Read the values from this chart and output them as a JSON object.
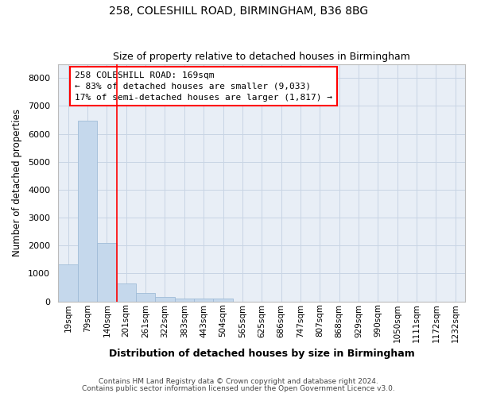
{
  "title1": "258, COLESHILL ROAD, BIRMINGHAM, B36 8BG",
  "title2": "Size of property relative to detached houses in Birmingham",
  "xlabel": "Distribution of detached houses by size in Birmingham",
  "ylabel": "Number of detached properties",
  "bar_labels": [
    "19sqm",
    "79sqm",
    "140sqm",
    "201sqm",
    "261sqm",
    "322sqm",
    "383sqm",
    "443sqm",
    "504sqm",
    "565sqm",
    "625sqm",
    "686sqm",
    "747sqm",
    "807sqm",
    "868sqm",
    "929sqm",
    "990sqm",
    "1050sqm",
    "1111sqm",
    "1172sqm",
    "1232sqm"
  ],
  "bar_values": [
    1320,
    6480,
    2100,
    650,
    300,
    150,
    100,
    100,
    100,
    0,
    0,
    0,
    0,
    0,
    0,
    0,
    0,
    0,
    0,
    0,
    0
  ],
  "bar_color": "#c5d8ec",
  "bar_edge_color": "#a0bcd8",
  "grid_color": "#c8d4e4",
  "red_line_index": 2,
  "annotation_text": "258 COLESHILL ROAD: 169sqm\n← 83% of detached houses are smaller (9,033)\n17% of semi-detached houses are larger (1,817) →",
  "annotation_box_color": "white",
  "annotation_box_edge_color": "red",
  "ylim": [
    0,
    8500
  ],
  "yticks": [
    0,
    1000,
    2000,
    3000,
    4000,
    5000,
    6000,
    7000,
    8000
  ],
  "footer1": "Contains HM Land Registry data © Crown copyright and database right 2024.",
  "footer2": "Contains public sector information licensed under the Open Government Licence v3.0.",
  "bg_color": "#ffffff",
  "plot_bg_color": "#e8eef6"
}
